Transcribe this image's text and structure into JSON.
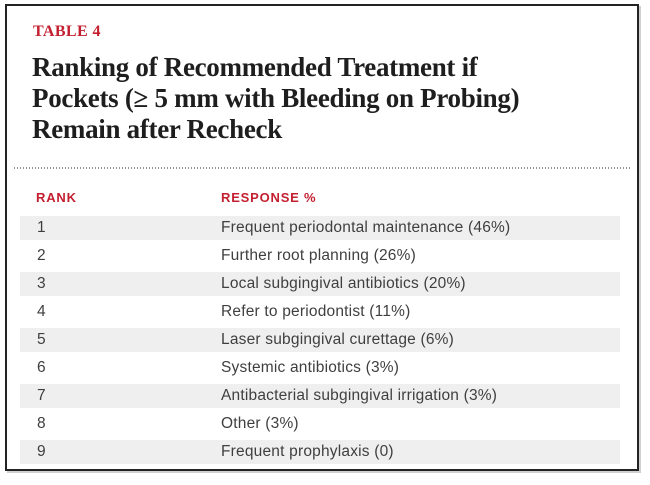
{
  "table_label": "TABLE 4",
  "title_lines": {
    "line1": "Ranking of Recommended Treatment if",
    "line2": "Pockets (≥ 5 mm with Bleeding on Probing)",
    "line3": "Remain after Recheck"
  },
  "columns": {
    "rank": "RANK",
    "response": "RESPONSE %"
  },
  "rows": [
    {
      "rank": "1",
      "response": "Frequent periodontal maintenance (46%)"
    },
    {
      "rank": "2",
      "response": "Further root planning (26%)"
    },
    {
      "rank": "3",
      "response": "Local subgingival antibiotics (20%)"
    },
    {
      "rank": "4",
      "response": "Refer to periodontist (11%)"
    },
    {
      "rank": "5",
      "response": "Laser subgingival curettage (6%)"
    },
    {
      "rank": "6",
      "response": "Systemic antibiotics (3%)"
    },
    {
      "rank": "7",
      "response": "Antibacterial subgingival irrigation (3%)"
    },
    {
      "rank": "8",
      "response": "Other (3%)"
    },
    {
      "rank": "9",
      "response": "Frequent prophylaxis (0)"
    }
  ],
  "colors": {
    "accent_red": "#c41f30",
    "title_text": "#1e1e1e",
    "row_text": "#3f3f3f",
    "stripe_bg": "#efefef",
    "frame_border": "#232323"
  }
}
